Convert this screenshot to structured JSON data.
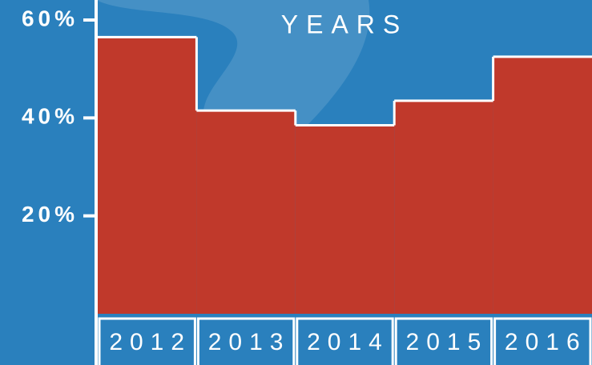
{
  "chart_data": {
    "type": "bar",
    "title": "YEARS",
    "categories": [
      "2012",
      "2013",
      "2014",
      "2015",
      "2016"
    ],
    "values": [
      56.5,
      41.5,
      38.5,
      43.5,
      52.5
    ],
    "color": "#c0392b",
    "ylim": [
      0,
      60
    ],
    "yticks": [
      {
        "value": 20,
        "label": "20%"
      },
      {
        "value": 40,
        "label": "40%"
      },
      {
        "value": 60,
        "label": "60%"
      }
    ]
  }
}
